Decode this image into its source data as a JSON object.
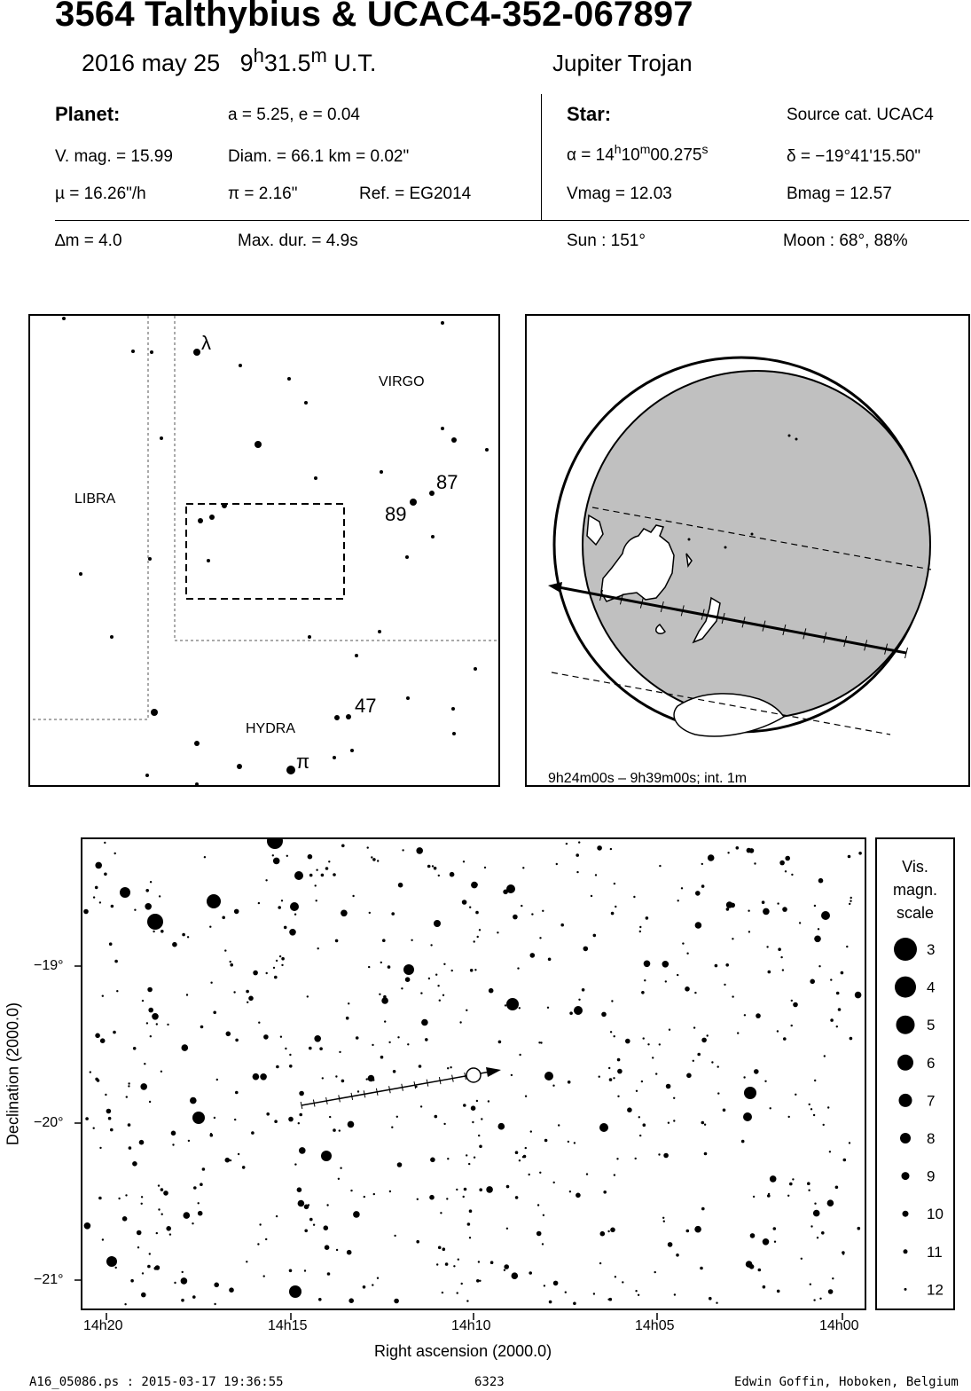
{
  "header": {
    "title": "3564 Talthybius  &  UCAC4-352-067897",
    "date": "2016 may 25",
    "time_h": "9",
    "time_h_unit": "h",
    "time_m": "31.5",
    "time_m_unit": "m",
    "time_suffix": "U.T.",
    "object_type": "Jupiter Trojan"
  },
  "planet": {
    "heading": "Planet:",
    "orbit": "a = 5.25, e = 0.04",
    "vmag": "V. mag. = 15.99",
    "diam": "Diam. = 66.1 km = 0.02\"",
    "mu": "µ =  16.26\"/h",
    "pi": "π =  2.16\"",
    "ref": "Ref. = EG2014",
    "delta_m": "∆m = 4.0",
    "max_dur": "Max. dur. = 4.9s"
  },
  "star": {
    "heading": "Star:",
    "source": "Source cat.  UCAC4",
    "ra_prefix": "α = 14",
    "ra_h": "h",
    "ra_min": "10",
    "ra_m": "m",
    "ra_sec": "00.275",
    "ra_s": "s",
    "dec": "δ = −19°41'15.50\"",
    "vmag": "Vmag = 12.03",
    "bmag": "Bmag = 12.57",
    "sun": "Sun : 151°",
    "moon": "Moon :  68°, 88%"
  },
  "finder_chart": {
    "labels": {
      "virgo": "VIRGO",
      "libra": "LIBRA",
      "hydra": "HYDRA",
      "lambda": "λ",
      "pi": "π",
      "s87": "87",
      "s89": "89",
      "s47": "47"
    }
  },
  "globe": {
    "time_range": "9h24m00s –  9h39m00s; int.  1m"
  },
  "star_chart": {
    "x_ticks": [
      "14h20",
      "14h15",
      "14h10",
      "14h05",
      "14h00"
    ],
    "y_ticks": [
      "−19°",
      "−20°",
      "−21°"
    ],
    "xlabel": "Right ascension (2000.0)",
    "ylabel": "Declination (2000.0)"
  },
  "legend": {
    "title_l1": "Vis.",
    "title_l2": "magn.",
    "title_l3": "scale",
    "mags": [
      "3",
      "4",
      "5",
      "6",
      "7",
      "8",
      "9",
      "10",
      "11",
      "12"
    ]
  },
  "footer": {
    "file": "A16_05086.ps : 2015-03-17 19:36:55",
    "id": "6323",
    "author": "Edwin Goffin, Hoboken, Belgium"
  }
}
